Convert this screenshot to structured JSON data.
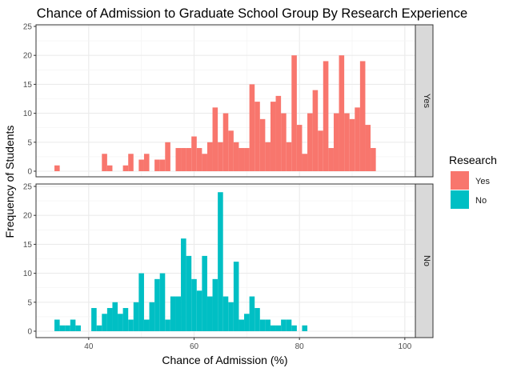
{
  "chart_data": {
    "type": "bar",
    "title": "Chance of Admission to Graduate School Group By Research Experience",
    "xlabel": "Chance of Admission (%)",
    "ylabel": "Frequency of Students",
    "xlim": [
      30,
      102
    ],
    "ylim": [
      0,
      25
    ],
    "x_ticks": [
      "40",
      "60",
      "80",
      "100"
    ],
    "y_ticks": [
      "0",
      "5",
      "10",
      "15",
      "20",
      "25"
    ],
    "bin_width": 1,
    "grid": true,
    "legend_title": "Research",
    "legend_position": "right",
    "series": [
      {
        "name": "Yes",
        "color": "#F8766D",
        "bins": [
          {
            "x": 34,
            "y": 1
          },
          {
            "x": 43,
            "y": 3
          },
          {
            "x": 44,
            "y": 1
          },
          {
            "x": 47,
            "y": 1
          },
          {
            "x": 48,
            "y": 3
          },
          {
            "x": 50,
            "y": 2
          },
          {
            "x": 51,
            "y": 3
          },
          {
            "x": 53,
            "y": 2
          },
          {
            "x": 54,
            "y": 2
          },
          {
            "x": 55,
            "y": 5
          },
          {
            "x": 57,
            "y": 4
          },
          {
            "x": 58,
            "y": 4
          },
          {
            "x": 59,
            "y": 4
          },
          {
            "x": 60,
            "y": 6
          },
          {
            "x": 61,
            "y": 4
          },
          {
            "x": 62,
            "y": 3
          },
          {
            "x": 63,
            "y": 5
          },
          {
            "x": 64,
            "y": 11
          },
          {
            "x": 65,
            "y": 5
          },
          {
            "x": 66,
            "y": 10
          },
          {
            "x": 67,
            "y": 7
          },
          {
            "x": 68,
            "y": 5
          },
          {
            "x": 69,
            "y": 4
          },
          {
            "x": 70,
            "y": 4
          },
          {
            "x": 71,
            "y": 15
          },
          {
            "x": 72,
            "y": 12
          },
          {
            "x": 73,
            "y": 9
          },
          {
            "x": 74,
            "y": 5
          },
          {
            "x": 75,
            "y": 12
          },
          {
            "x": 76,
            "y": 13
          },
          {
            "x": 77,
            "y": 10
          },
          {
            "x": 78,
            "y": 5
          },
          {
            "x": 79,
            "y": 20
          },
          {
            "x": 80,
            "y": 8
          },
          {
            "x": 81,
            "y": 3
          },
          {
            "x": 82,
            "y": 10
          },
          {
            "x": 83,
            "y": 14
          },
          {
            "x": 84,
            "y": 7
          },
          {
            "x": 85,
            "y": 19
          },
          {
            "x": 86,
            "y": 4
          },
          {
            "x": 87,
            "y": 10
          },
          {
            "x": 88,
            "y": 20
          },
          {
            "x": 89,
            "y": 10
          },
          {
            "x": 90,
            "y": 9
          },
          {
            "x": 91,
            "y": 11
          },
          {
            "x": 92,
            "y": 19
          },
          {
            "x": 93,
            "y": 8
          },
          {
            "x": 94,
            "y": 4
          }
        ]
      },
      {
        "name": "No",
        "color": "#00BFC4",
        "bins": [
          {
            "x": 34,
            "y": 2
          },
          {
            "x": 35,
            "y": 1
          },
          {
            "x": 36,
            "y": 1
          },
          {
            "x": 37,
            "y": 2
          },
          {
            "x": 38,
            "y": 1
          },
          {
            "x": 41,
            "y": 4
          },
          {
            "x": 42,
            "y": 1
          },
          {
            "x": 43,
            "y": 3
          },
          {
            "x": 44,
            "y": 4
          },
          {
            "x": 45,
            "y": 5
          },
          {
            "x": 46,
            "y": 3
          },
          {
            "x": 47,
            "y": 4
          },
          {
            "x": 48,
            "y": 2
          },
          {
            "x": 49,
            "y": 5
          },
          {
            "x": 50,
            "y": 10
          },
          {
            "x": 51,
            "y": 2
          },
          {
            "x": 52,
            "y": 5
          },
          {
            "x": 53,
            "y": 9
          },
          {
            "x": 54,
            "y": 10
          },
          {
            "x": 55,
            "y": 2
          },
          {
            "x": 56,
            "y": 6
          },
          {
            "x": 57,
            "y": 6
          },
          {
            "x": 58,
            "y": 16
          },
          {
            "x": 59,
            "y": 13
          },
          {
            "x": 60,
            "y": 9
          },
          {
            "x": 61,
            "y": 7
          },
          {
            "x": 62,
            "y": 13
          },
          {
            "x": 63,
            "y": 6
          },
          {
            "x": 64,
            "y": 9
          },
          {
            "x": 65,
            "y": 24
          },
          {
            "x": 66,
            "y": 6
          },
          {
            "x": 67,
            "y": 5
          },
          {
            "x": 68,
            "y": 12
          },
          {
            "x": 69,
            "y": 2
          },
          {
            "x": 70,
            "y": 3
          },
          {
            "x": 71,
            "y": 6
          },
          {
            "x": 72,
            "y": 4
          },
          {
            "x": 73,
            "y": 2
          },
          {
            "x": 74,
            "y": 2
          },
          {
            "x": 75,
            "y": 1
          },
          {
            "x": 76,
            "y": 1
          },
          {
            "x": 77,
            "y": 2
          },
          {
            "x": 78,
            "y": 2
          },
          {
            "x": 79,
            "y": 1
          },
          {
            "x": 81,
            "y": 1
          }
        ]
      }
    ]
  }
}
